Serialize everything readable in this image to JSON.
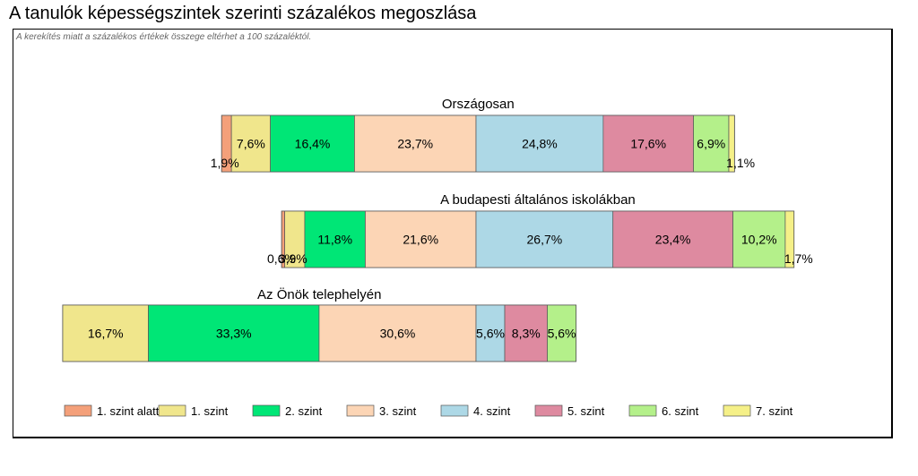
{
  "title": "A tanulók képességszintek szerinti százalékos megoszlása",
  "note": "A kerekítés miatt a százalékos értékek összege eltérhet a 100 százaléktól.",
  "chart_data": {
    "type": "bar",
    "orientation": "horizontal",
    "stacked": true,
    "categories": [
      "Országosan",
      "A budapesti általános iskolákban",
      "Az Önök telephelyén"
    ],
    "series": [
      {
        "name": "1. szint alatti",
        "color": "#f4a07a",
        "values": [
          1.9,
          0.6,
          0
        ]
      },
      {
        "name": "1. szint",
        "color": "#f0e68c",
        "values": [
          7.6,
          3.9,
          16.7
        ]
      },
      {
        "name": "2. szint",
        "color": "#00e676",
        "values": [
          16.4,
          11.8,
          33.3
        ]
      },
      {
        "name": "3. szint",
        "color": "#fcd5b5",
        "values": [
          23.7,
          21.6,
          30.6
        ]
      },
      {
        "name": "4. szint",
        "color": "#add8e6",
        "values": [
          24.8,
          26.7,
          5.6
        ]
      },
      {
        "name": "5. szint",
        "color": "#de8aa0",
        "values": [
          17.6,
          23.4,
          8.3
        ]
      },
      {
        "name": "6. szint",
        "color": "#b4f08a",
        "values": [
          6.9,
          10.2,
          5.6
        ]
      },
      {
        "name": "7. szint",
        "color": "#f5f088",
        "values": [
          1.1,
          1.7,
          0
        ]
      }
    ],
    "labels": [
      [
        "1,9%",
        "7,6%",
        "16,4%",
        "23,7%",
        "24,8%",
        "17,6%",
        "6,9%",
        "1,1%"
      ],
      [
        "0,6%",
        "3,9%",
        "11,8%",
        "21,6%",
        "26,7%",
        "23,4%",
        "10,2%",
        "1,7%"
      ],
      [
        "",
        "16,7%",
        "33,3%",
        "30,6%",
        "5,6%",
        "8,3%",
        "5,6%",
        ""
      ]
    ],
    "legend_position": "bottom"
  }
}
